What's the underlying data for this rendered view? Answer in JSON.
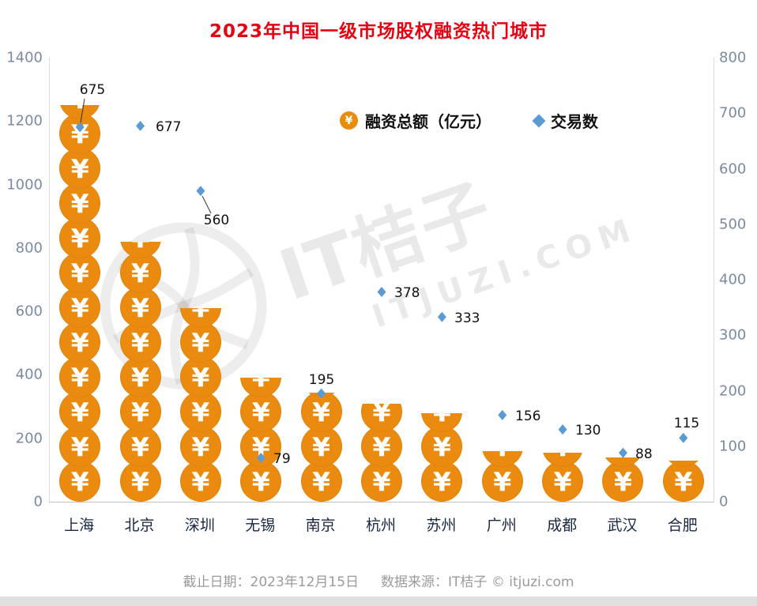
{
  "title": "2023年中国一级市场股权融资热门城市",
  "coin_symbol": "¥",
  "legend": {
    "financing_label": "融资总额（亿元）",
    "deals_label": "交易数"
  },
  "axes": {
    "left_ticks": [
      0,
      200,
      400,
      600,
      800,
      1000,
      1200,
      1400
    ],
    "right_ticks": [
      0,
      100,
      200,
      300,
      400,
      500,
      600,
      700,
      800
    ]
  },
  "chart_data": {
    "type": "bar",
    "title": "2023年中国一级市场股权融资热门城市",
    "categories": [
      "上海",
      "北京",
      "深圳",
      "无锡",
      "南京",
      "杭州",
      "苏州",
      "广州",
      "成都",
      "武汉",
      "合肥"
    ],
    "series": [
      {
        "name": "融资总额（亿元）",
        "type": "pictogram-bar",
        "axis": "left",
        "unit": "亿元",
        "values": [
          1250,
          820,
          610,
          390,
          345,
          310,
          280,
          160,
          155,
          140,
          130
        ]
      },
      {
        "name": "交易数",
        "type": "scatter",
        "axis": "right",
        "values": [
          675,
          677,
          560,
          79,
          195,
          378,
          333,
          156,
          130,
          88,
          115
        ]
      }
    ],
    "left_ylim": [
      0,
      1400
    ],
    "right_ylim": [
      0,
      800
    ],
    "legend_position": "top-center",
    "grid": false
  },
  "colors": {
    "title": "#e60012",
    "coin": "#ea8b0f",
    "diamond": "#5b9bd5",
    "axis_label": "#7a8aa0",
    "category_label": "#1a2742"
  },
  "watermark": {
    "line1": "IT桔子",
    "line2": "ITJUZI.COM"
  },
  "footer": {
    "date_label": "截止日期：2023年12月15日",
    "source_label": "数据来源：IT桔子 © itjuzi.com"
  }
}
